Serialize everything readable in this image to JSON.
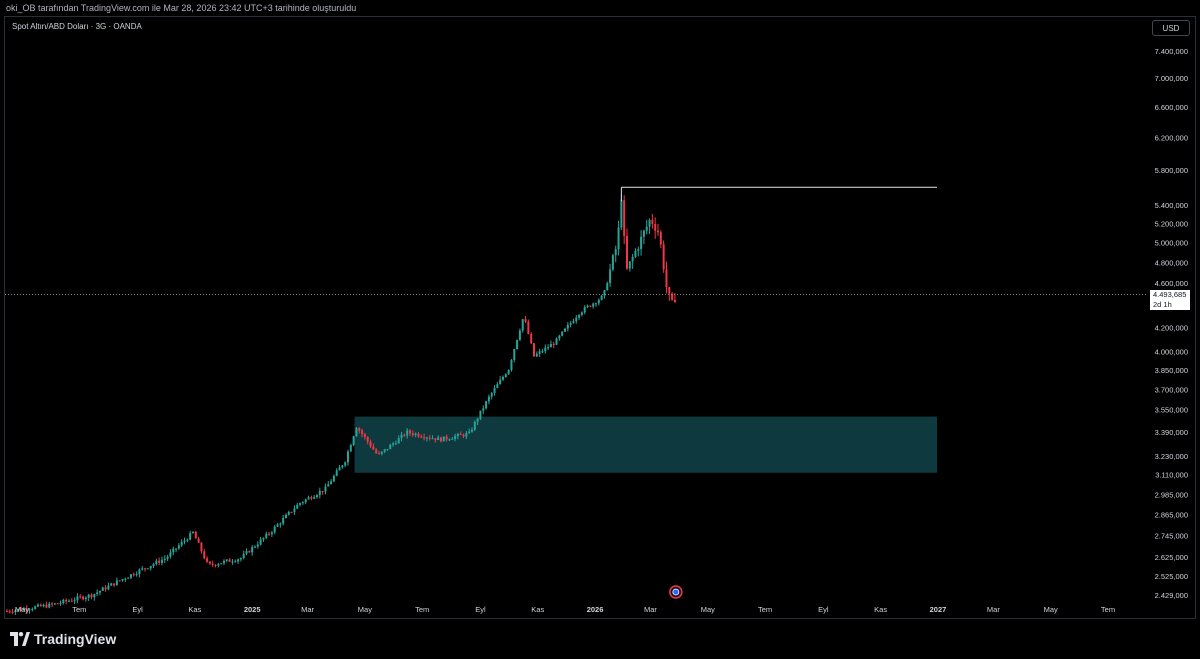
{
  "header": {
    "attribution": "oki_OB tarafından TradingView.com ile Mar 28, 2026 23:42 UTC+3 tarihinde oluşturuldu"
  },
  "symbol_label": "Spot Altın/ABD Doları · 3G · OANDA",
  "currency_button": "USD",
  "brand": {
    "name": "TradingView"
  },
  "current_price": {
    "value": "4.493,685",
    "countdown": "2d 1h"
  },
  "colors": {
    "up": "#26a69a",
    "down": "#f23645",
    "zone": "#0e3a3f",
    "line": "#e0e3eb"
  },
  "chart_data": {
    "type": "candlestick",
    "scale": "log",
    "y_ticks": [
      "7.400,000",
      "7.000,000",
      "6.600,000",
      "6.200,000",
      "5.800,000",
      "5.400,000",
      "5.200,000",
      "5.000,000",
      "4.800,000",
      "4.600,000",
      "4.200,000",
      "4.000,000",
      "3.850,000",
      "3.700,000",
      "3.550,000",
      "3.390,000",
      "3.230,000",
      "3.110,000",
      "2.985,000",
      "2.865,000",
      "2.745,000",
      "2.625,000",
      "2.525,000",
      "2.429,000"
    ],
    "x_ticks": [
      "May",
      "Tem",
      "Eyl",
      "Kas",
      "2025",
      "Mar",
      "May",
      "Tem",
      "Eyl",
      "Kas",
      "2026",
      "Mar",
      "May",
      "Tem",
      "Eyl",
      "Kas",
      "2027",
      "Mar",
      "May",
      "Tem"
    ],
    "x_tick_dates": [
      "2024-05-01",
      "2024-07-01",
      "2024-09-01",
      "2024-11-01",
      "2025-01-01",
      "2025-03-01",
      "2025-05-01",
      "2025-07-01",
      "2025-09-01",
      "2025-11-01",
      "2026-01-01",
      "2026-03-01",
      "2026-05-01",
      "2026-07-01",
      "2026-09-01",
      "2026-11-01",
      "2027-01-01",
      "2027-03-01",
      "2027-05-01",
      "2027-07-01"
    ],
    "ylim": [
      2429,
      7400
    ],
    "price_points": [
      [
        "2024-04-15",
        2350
      ],
      [
        "2024-06-01",
        2380
      ],
      [
        "2024-07-15",
        2430
      ],
      [
        "2024-08-20",
        2520
      ],
      [
        "2024-10-01",
        2620
      ],
      [
        "2024-10-30",
        2760
      ],
      [
        "2024-11-15",
        2580
      ],
      [
        "2024-12-20",
        2620
      ],
      [
        "2025-01-20",
        2760
      ],
      [
        "2025-02-20",
        2930
      ],
      [
        "2025-03-20",
        3020
      ],
      [
        "2025-04-10",
        3200
      ],
      [
        "2025-04-22",
        3430
      ],
      [
        "2025-05-15",
        3230
      ],
      [
        "2025-06-15",
        3390
      ],
      [
        "2025-07-20",
        3340
      ],
      [
        "2025-08-20",
        3380
      ],
      [
        "2025-09-10",
        3640
      ],
      [
        "2025-10-01",
        3860
      ],
      [
        "2025-10-17",
        4300
      ],
      [
        "2025-10-28",
        3960
      ],
      [
        "2025-11-20",
        4080
      ],
      [
        "2025-12-15",
        4330
      ],
      [
        "2026-01-10",
        4480
      ],
      [
        "2026-01-25",
        5000
      ],
      [
        "2026-01-29",
        5500
      ],
      [
        "2026-02-03",
        4700
      ],
      [
        "2026-02-15",
        4950
      ],
      [
        "2026-03-01",
        5250
      ],
      [
        "2026-03-10",
        5100
      ],
      [
        "2026-03-19",
        4500
      ],
      [
        "2026-03-24",
        4400
      ],
      [
        "2026-03-28",
        4494
      ]
    ],
    "resistance_line": {
      "price": 5598,
      "from": "2026-01-29",
      "to": "2026-12-31"
    },
    "demand_zone": {
      "top": 3500,
      "bottom": 3120,
      "from": "2025-04-20",
      "to": "2026-12-31"
    },
    "grid": false,
    "legend": "none"
  }
}
